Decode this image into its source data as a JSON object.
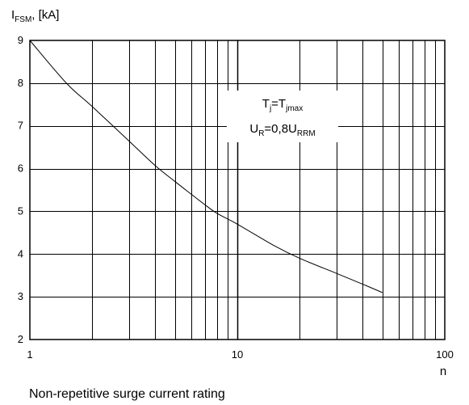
{
  "chart_data": {
    "type": "line",
    "title": "",
    "caption": "Non-repetitive surge current rating",
    "ylabel": {
      "main": "I",
      "sub": "FSM",
      "rest": ", [kA]"
    },
    "xlabel": "n",
    "x_scale": "log",
    "xlim": [
      1,
      100
    ],
    "ylim": [
      2,
      9
    ],
    "grid": true,
    "x_ticks": [
      1,
      10,
      100
    ],
    "x_tick_labels": [
      "1",
      "10",
      "100"
    ],
    "y_ticks": [
      2,
      3,
      4,
      5,
      6,
      7,
      8,
      9
    ],
    "y_tick_labels": [
      "2",
      "3",
      "4",
      "5",
      "6",
      "7",
      "8",
      "9"
    ],
    "annotation": {
      "line1": {
        "main": "T",
        "sub1": "j",
        "mid": "=T",
        "sub2": "jmax"
      },
      "line2": {
        "main": "U",
        "sub1": "R",
        "mid": "=0,8U",
        "sub2": "RRM"
      }
    },
    "series": [
      {
        "x": [
          1,
          1.5,
          2,
          3,
          4,
          5,
          6,
          7,
          8,
          10,
          15,
          20,
          30,
          40,
          50
        ],
        "y": [
          9.0,
          8.0,
          7.45,
          6.65,
          6.08,
          5.7,
          5.4,
          5.15,
          4.95,
          4.7,
          4.2,
          3.9,
          3.55,
          3.3,
          3.1
        ]
      }
    ]
  }
}
